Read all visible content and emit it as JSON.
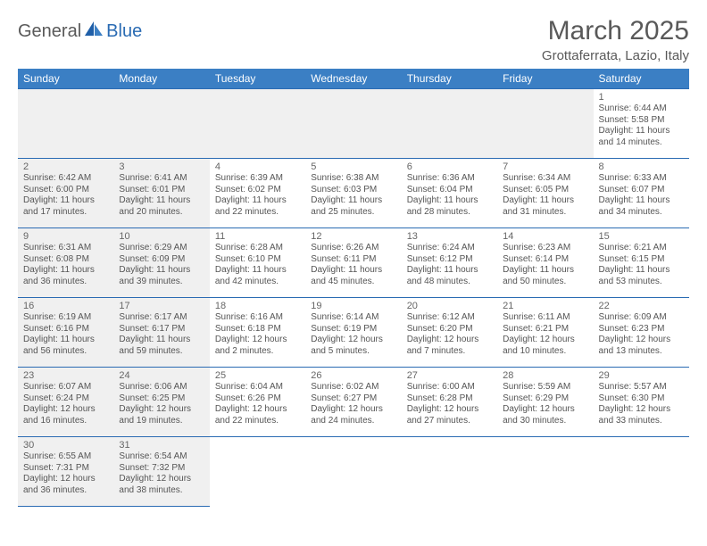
{
  "logo": {
    "part1": "General",
    "part2": "Blue"
  },
  "title": "March 2025",
  "subtitle": "Grottaferrata, Lazio, Italy",
  "colors": {
    "header_bg": "#3b7fc4",
    "header_border": "#2a6bb3",
    "gray_bg": "#f0f0f0",
    "text_muted": "#595959",
    "brand_blue": "#2a6bb3"
  },
  "day_headers": [
    "Sunday",
    "Monday",
    "Tuesday",
    "Wednesday",
    "Thursday",
    "Friday",
    "Saturday"
  ],
  "weeks": [
    [
      {
        "blank": true
      },
      {
        "blank": true
      },
      {
        "blank": true
      },
      {
        "blank": true
      },
      {
        "blank": true
      },
      {
        "blank": true
      },
      {
        "num": "1",
        "sunrise": "Sunrise: 6:44 AM",
        "sunset": "Sunset: 5:58 PM",
        "day1": "Daylight: 11 hours",
        "day2": "and 14 minutes."
      }
    ],
    [
      {
        "num": "2",
        "sunrise": "Sunrise: 6:42 AM",
        "sunset": "Sunset: 6:00 PM",
        "day1": "Daylight: 11 hours",
        "day2": "and 17 minutes.",
        "gray": true
      },
      {
        "num": "3",
        "sunrise": "Sunrise: 6:41 AM",
        "sunset": "Sunset: 6:01 PM",
        "day1": "Daylight: 11 hours",
        "day2": "and 20 minutes.",
        "gray": true
      },
      {
        "num": "4",
        "sunrise": "Sunrise: 6:39 AM",
        "sunset": "Sunset: 6:02 PM",
        "day1": "Daylight: 11 hours",
        "day2": "and 22 minutes."
      },
      {
        "num": "5",
        "sunrise": "Sunrise: 6:38 AM",
        "sunset": "Sunset: 6:03 PM",
        "day1": "Daylight: 11 hours",
        "day2": "and 25 minutes."
      },
      {
        "num": "6",
        "sunrise": "Sunrise: 6:36 AM",
        "sunset": "Sunset: 6:04 PM",
        "day1": "Daylight: 11 hours",
        "day2": "and 28 minutes."
      },
      {
        "num": "7",
        "sunrise": "Sunrise: 6:34 AM",
        "sunset": "Sunset: 6:05 PM",
        "day1": "Daylight: 11 hours",
        "day2": "and 31 minutes."
      },
      {
        "num": "8",
        "sunrise": "Sunrise: 6:33 AM",
        "sunset": "Sunset: 6:07 PM",
        "day1": "Daylight: 11 hours",
        "day2": "and 34 minutes."
      }
    ],
    [
      {
        "num": "9",
        "sunrise": "Sunrise: 6:31 AM",
        "sunset": "Sunset: 6:08 PM",
        "day1": "Daylight: 11 hours",
        "day2": "and 36 minutes.",
        "gray": true
      },
      {
        "num": "10",
        "sunrise": "Sunrise: 6:29 AM",
        "sunset": "Sunset: 6:09 PM",
        "day1": "Daylight: 11 hours",
        "day2": "and 39 minutes.",
        "gray": true
      },
      {
        "num": "11",
        "sunrise": "Sunrise: 6:28 AM",
        "sunset": "Sunset: 6:10 PM",
        "day1": "Daylight: 11 hours",
        "day2": "and 42 minutes."
      },
      {
        "num": "12",
        "sunrise": "Sunrise: 6:26 AM",
        "sunset": "Sunset: 6:11 PM",
        "day1": "Daylight: 11 hours",
        "day2": "and 45 minutes."
      },
      {
        "num": "13",
        "sunrise": "Sunrise: 6:24 AM",
        "sunset": "Sunset: 6:12 PM",
        "day1": "Daylight: 11 hours",
        "day2": "and 48 minutes."
      },
      {
        "num": "14",
        "sunrise": "Sunrise: 6:23 AM",
        "sunset": "Sunset: 6:14 PM",
        "day1": "Daylight: 11 hours",
        "day2": "and 50 minutes."
      },
      {
        "num": "15",
        "sunrise": "Sunrise: 6:21 AM",
        "sunset": "Sunset: 6:15 PM",
        "day1": "Daylight: 11 hours",
        "day2": "and 53 minutes."
      }
    ],
    [
      {
        "num": "16",
        "sunrise": "Sunrise: 6:19 AM",
        "sunset": "Sunset: 6:16 PM",
        "day1": "Daylight: 11 hours",
        "day2": "and 56 minutes.",
        "gray": true
      },
      {
        "num": "17",
        "sunrise": "Sunrise: 6:17 AM",
        "sunset": "Sunset: 6:17 PM",
        "day1": "Daylight: 11 hours",
        "day2": "and 59 minutes.",
        "gray": true
      },
      {
        "num": "18",
        "sunrise": "Sunrise: 6:16 AM",
        "sunset": "Sunset: 6:18 PM",
        "day1": "Daylight: 12 hours",
        "day2": "and 2 minutes."
      },
      {
        "num": "19",
        "sunrise": "Sunrise: 6:14 AM",
        "sunset": "Sunset: 6:19 PM",
        "day1": "Daylight: 12 hours",
        "day2": "and 5 minutes."
      },
      {
        "num": "20",
        "sunrise": "Sunrise: 6:12 AM",
        "sunset": "Sunset: 6:20 PM",
        "day1": "Daylight: 12 hours",
        "day2": "and 7 minutes."
      },
      {
        "num": "21",
        "sunrise": "Sunrise: 6:11 AM",
        "sunset": "Sunset: 6:21 PM",
        "day1": "Daylight: 12 hours",
        "day2": "and 10 minutes."
      },
      {
        "num": "22",
        "sunrise": "Sunrise: 6:09 AM",
        "sunset": "Sunset: 6:23 PM",
        "day1": "Daylight: 12 hours",
        "day2": "and 13 minutes."
      }
    ],
    [
      {
        "num": "23",
        "sunrise": "Sunrise: 6:07 AM",
        "sunset": "Sunset: 6:24 PM",
        "day1": "Daylight: 12 hours",
        "day2": "and 16 minutes.",
        "gray": true
      },
      {
        "num": "24",
        "sunrise": "Sunrise: 6:06 AM",
        "sunset": "Sunset: 6:25 PM",
        "day1": "Daylight: 12 hours",
        "day2": "and 19 minutes.",
        "gray": true
      },
      {
        "num": "25",
        "sunrise": "Sunrise: 6:04 AM",
        "sunset": "Sunset: 6:26 PM",
        "day1": "Daylight: 12 hours",
        "day2": "and 22 minutes."
      },
      {
        "num": "26",
        "sunrise": "Sunrise: 6:02 AM",
        "sunset": "Sunset: 6:27 PM",
        "day1": "Daylight: 12 hours",
        "day2": "and 24 minutes."
      },
      {
        "num": "27",
        "sunrise": "Sunrise: 6:00 AM",
        "sunset": "Sunset: 6:28 PM",
        "day1": "Daylight: 12 hours",
        "day2": "and 27 minutes."
      },
      {
        "num": "28",
        "sunrise": "Sunrise: 5:59 AM",
        "sunset": "Sunset: 6:29 PM",
        "day1": "Daylight: 12 hours",
        "day2": "and 30 minutes."
      },
      {
        "num": "29",
        "sunrise": "Sunrise: 5:57 AM",
        "sunset": "Sunset: 6:30 PM",
        "day1": "Daylight: 12 hours",
        "day2": "and 33 minutes."
      }
    ],
    [
      {
        "num": "30",
        "sunrise": "Sunrise: 6:55 AM",
        "sunset": "Sunset: 7:31 PM",
        "day1": "Daylight: 12 hours",
        "day2": "and 36 minutes.",
        "gray": true
      },
      {
        "num": "31",
        "sunrise": "Sunrise: 6:54 AM",
        "sunset": "Sunset: 7:32 PM",
        "day1": "Daylight: 12 hours",
        "day2": "and 38 minutes.",
        "gray": true
      },
      {
        "empty": true
      },
      {
        "empty": true
      },
      {
        "empty": true
      },
      {
        "empty": true
      },
      {
        "empty": true
      }
    ]
  ]
}
